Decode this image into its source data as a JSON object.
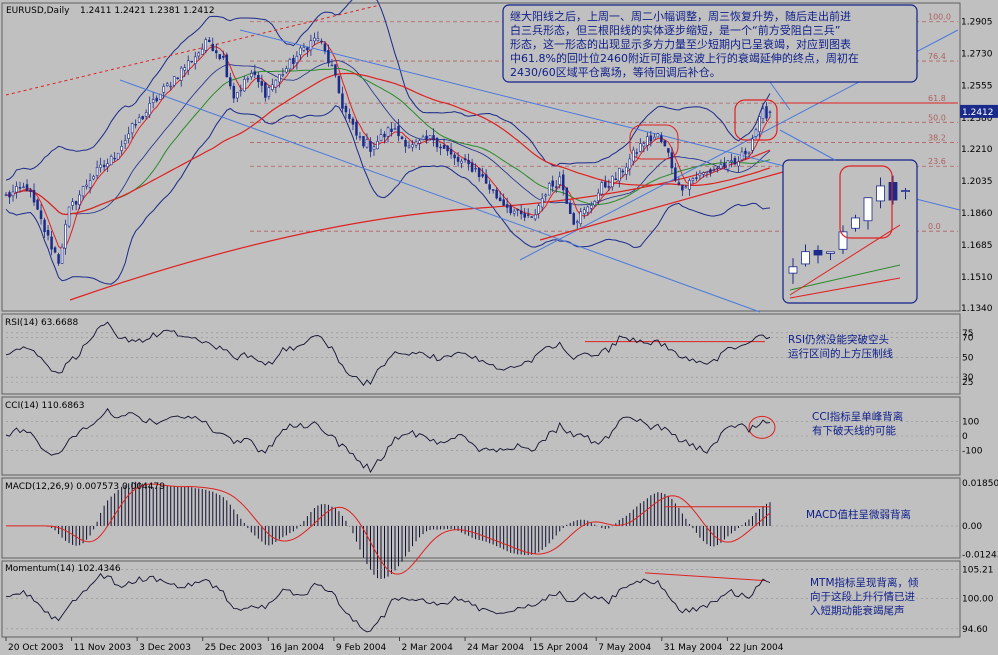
{
  "header": {
    "symbol_period": "EURUSD,Daily",
    "ohlc": "1.2411 1.2421 1.2381 1.2412"
  },
  "price_axis": {
    "ticks": [
      "1.2905",
      "1.2730",
      "1.2555",
      "1.2380",
      "1.2210",
      "1.2035",
      "1.1860",
      "1.1685",
      "1.1510",
      "1.1340"
    ],
    "current": "1.2412",
    "current_color": "#1a2a8a"
  },
  "fib_levels": [
    "100.0",
    "76.4",
    "61.8",
    "50.0",
    "38.2",
    "23.6",
    "0.0"
  ],
  "date_axis": [
    "20 Oct 2003",
    "11 Nov 2003",
    "3 Dec 2003",
    "25 Dec 2003",
    "16 Jan 2004",
    "9 Feb 2004",
    "2 Mar 2004",
    "24 Mar 2004",
    "15 Apr 2004",
    "7 May 2004",
    "31 May 2004",
    "22 Jun 2004"
  ],
  "annotations": {
    "main": [
      "继大阳线之后，上周一、周二小幅调整，周三恢复升势，随后走出前进",
      "白三兵形态，但三根阳线的实体逐步缩短，是一个“前方受阻白三兵”",
      "形态，这一形态的出现显示多方力量至少短期内已呈衰竭，对应到图表",
      "中61.8%的回吐位2460附近可能是这波上行的衰竭延伸的终点，周初在",
      "2430/60区域平仓离场，等待回调后补仓。"
    ],
    "rsi": [
      "RSI仍然没能突破空头",
      "运行区间的上方压制线"
    ],
    "cci": [
      "CCI指标呈单峰背离",
      "有下破天线的可能"
    ],
    "macd": [
      "MACD值柱呈微弱背离"
    ],
    "mtm": [
      "MTM指标呈现背离，倾",
      "向于这段上升行情已进",
      "入短期动能衰竭尾声"
    ]
  },
  "indicators": {
    "rsi": {
      "label": "RSI(14) 63.6688",
      "ticks": [
        "75",
        "70",
        "50",
        "30",
        "25"
      ]
    },
    "cci": {
      "label": "CCI(14) 110.6863",
      "ticks": [
        "100",
        "0",
        "-100"
      ]
    },
    "macd": {
      "label": "MACD(12,26,9) 0.007573 0.004479",
      "ticks": [
        "0.01850",
        "0.00",
        "-0.01243"
      ]
    },
    "mtm": {
      "label": "Momentum(14) 102.4346",
      "ticks": [
        "105.21",
        "100.00",
        "94.60"
      ]
    }
  },
  "colors": {
    "background": "#c0c0c0",
    "candle": "#1a2a8a",
    "bollinger": "#1a2a8a",
    "ma_red": "#e02020",
    "ma_green": "#2a8a2a",
    "trend_blue": "#4a7adc",
    "annotation": "#10208a"
  },
  "chart_data": {
    "type": "candlestick",
    "symbol": "EURUSD",
    "timeframe": "Daily",
    "last": {
      "open": 1.2411,
      "high": 1.2421,
      "low": 1.2381,
      "close": 1.2412
    },
    "ylim": [
      1.134,
      1.298
    ],
    "fib_retracement": {
      "100.0": 1.2905,
      "76.4": 1.269,
      "61.8": 1.246,
      "50.0": 1.2355,
      "38.2": 1.2245,
      "23.6": 1.2115,
      "0.0": 1.176
    },
    "trend_anchors_close": [
      [
        0,
        1.195
      ],
      [
        6,
        1.2
      ],
      [
        12,
        1.172
      ],
      [
        15,
        1.16
      ],
      [
        18,
        1.187
      ],
      [
        24,
        1.205
      ],
      [
        30,
        1.215
      ],
      [
        36,
        1.232
      ],
      [
        42,
        1.246
      ],
      [
        48,
        1.26
      ],
      [
        54,
        1.272
      ],
      [
        58,
        1.28
      ],
      [
        62,
        1.27
      ],
      [
        65,
        1.25
      ],
      [
        70,
        1.262
      ],
      [
        74,
        1.252
      ],
      [
        80,
        1.265
      ],
      [
        86,
        1.278
      ],
      [
        89,
        1.282
      ],
      [
        93,
        1.265
      ],
      [
        96,
        1.245
      ],
      [
        100,
        1.228
      ],
      [
        104,
        1.222
      ],
      [
        110,
        1.232
      ],
      [
        116,
        1.222
      ],
      [
        122,
        1.227
      ],
      [
        128,
        1.215
      ],
      [
        134,
        1.21
      ],
      [
        140,
        1.195
      ],
      [
        146,
        1.185
      ],
      [
        150,
        1.182
      ],
      [
        154,
        1.198
      ],
      [
        158,
        1.205
      ],
      [
        162,
        1.182
      ],
      [
        166,
        1.188
      ],
      [
        170,
        1.2
      ],
      [
        174,
        1.205
      ],
      [
        178,
        1.215
      ],
      [
        182,
        1.225
      ],
      [
        186,
        1.228
      ],
      [
        189,
        1.218
      ],
      [
        192,
        1.2
      ],
      [
        196,
        1.205
      ],
      [
        200,
        1.208
      ],
      [
        204,
        1.212
      ],
      [
        208,
        1.212
      ],
      [
        212,
        1.222
      ],
      [
        214,
        1.232
      ],
      [
        216,
        1.24
      ],
      [
        218,
        1.2412
      ]
    ],
    "rsi_14_last": 63.6688,
    "cci_14_last": 110.6863,
    "macd_12_26_9_last": [
      0.007573,
      0.004479
    ],
    "momentum_14_last": 102.4346
  }
}
